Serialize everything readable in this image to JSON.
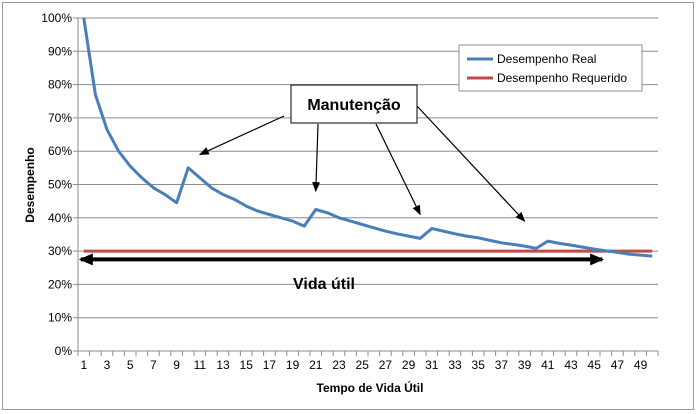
{
  "chart_data": {
    "type": "line",
    "xlabel": "Tempo de Vida Útil",
    "ylabel": "Desempenho",
    "ylim": [
      0,
      100
    ],
    "y_ticks": [
      "0%",
      "10%",
      "20%",
      "30%",
      "40%",
      "50%",
      "60%",
      "70%",
      "80%",
      "90%",
      "100%"
    ],
    "x_ticks": [
      "1",
      "3",
      "5",
      "7",
      "9",
      "11",
      "13",
      "15",
      "17",
      "19",
      "21",
      "23",
      "25",
      "27",
      "29",
      "31",
      "33",
      "35",
      "37",
      "39",
      "41",
      "43",
      "45",
      "47",
      "49"
    ],
    "x": [
      1,
      2,
      3,
      4,
      5,
      6,
      7,
      8,
      9,
      10,
      11,
      12,
      13,
      14,
      15,
      16,
      17,
      18,
      19,
      20,
      21,
      22,
      23,
      24,
      25,
      26,
      27,
      28,
      29,
      30,
      31,
      32,
      33,
      34,
      35,
      36,
      37,
      38,
      39,
      40,
      41,
      42,
      43,
      44,
      45,
      46,
      47,
      48,
      49,
      50
    ],
    "grid": true,
    "legend_position": "top-right",
    "series": [
      {
        "name": "Desempenho Real",
        "color": "#4a7ebb",
        "values": [
          100,
          77,
          66.5,
          60,
          55.5,
          52,
          49,
          47,
          44.5,
          55,
          52,
          49,
          47,
          45.5,
          43.5,
          42,
          41,
          40,
          39,
          37.5,
          42.5,
          41.5,
          40,
          39,
          38,
          37,
          36,
          35.2,
          34.5,
          33.8,
          36.8,
          36,
          35.2,
          34.5,
          34,
          33.2,
          32.5,
          32,
          31.5,
          30.8,
          33,
          32.3,
          31.8,
          31.2,
          30.6,
          30.1,
          29.6,
          29.1,
          28.8,
          28.5
        ]
      },
      {
        "name": "Desempenho Requerido",
        "color": "#be4b48",
        "values": [
          30,
          30,
          30,
          30,
          30,
          30,
          30,
          30,
          30,
          30,
          30,
          30,
          30,
          30,
          30,
          30,
          30,
          30,
          30,
          30,
          30,
          30,
          30,
          30,
          30,
          30,
          30,
          30,
          30,
          30,
          30,
          30,
          30,
          30,
          30,
          30,
          30,
          30,
          30,
          30,
          30,
          30,
          30,
          30,
          30,
          30,
          30,
          30,
          30,
          30
        ]
      }
    ],
    "annotations": {
      "manutencao": {
        "label": "Manutenção",
        "arrow_targets": [
          {
            "x": 11,
            "y": 59
          },
          {
            "x": 21,
            "y": 48
          },
          {
            "x": 30,
            "y": 41
          },
          {
            "x": 39,
            "y": 39
          }
        ]
      },
      "vida_util": {
        "label": "Vida útil",
        "x_start": 1,
        "x_end": 45,
        "y": 27.5
      }
    }
  }
}
